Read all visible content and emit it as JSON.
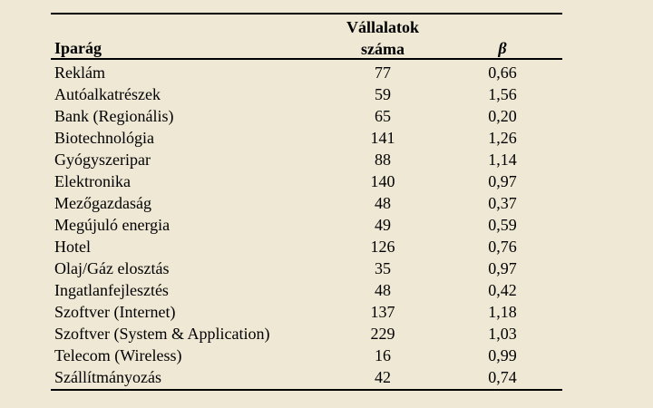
{
  "table": {
    "headers": {
      "industry": "Iparág",
      "count_line1": "Vállalatok",
      "count_line2": "száma",
      "beta": "β"
    },
    "rows": [
      {
        "industry": "Reklám",
        "count": "77",
        "beta": "0,66"
      },
      {
        "industry": "Autóalkatrészek",
        "count": "59",
        "beta": "1,56"
      },
      {
        "industry": "Bank (Regionális)",
        "count": "65",
        "beta": "0,20"
      },
      {
        "industry": "Biotechnológia",
        "count": "141",
        "beta": "1,26"
      },
      {
        "industry": "Gyógyszeripar",
        "count": "88",
        "beta": "1,14"
      },
      {
        "industry": "Elektronika",
        "count": "140",
        "beta": "0,97"
      },
      {
        "industry": "Mezőgazdaság",
        "count": "48",
        "beta": "0,37"
      },
      {
        "industry": "Megújuló energia",
        "count": "49",
        "beta": "0,59"
      },
      {
        "industry": "Hotel",
        "count": "126",
        "beta": "0,76"
      },
      {
        "industry": "Olaj/Gáz elosztás",
        "count": "35",
        "beta": "0,97"
      },
      {
        "industry": "Ingatlanfejlesztés",
        "count": "48",
        "beta": "0,42"
      },
      {
        "industry": "Szoftver (Internet)",
        "count": "137",
        "beta": "1,18"
      },
      {
        "industry": "Szoftver (System & Application)",
        "count": "229",
        "beta": "1,03"
      },
      {
        "industry": "Telecom (Wireless)",
        "count": "16",
        "beta": "0,99"
      },
      {
        "industry": "Szállítmányozás",
        "count": "42",
        "beta": "0,74"
      }
    ]
  }
}
